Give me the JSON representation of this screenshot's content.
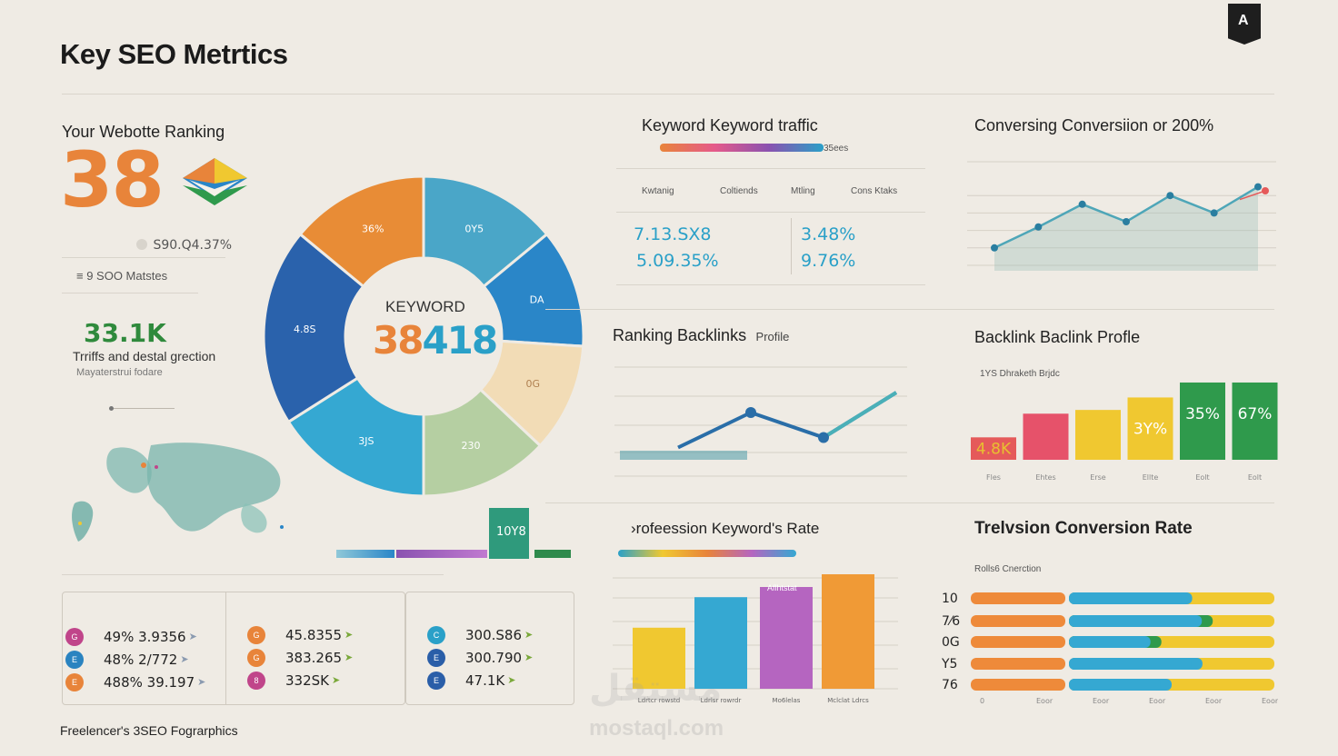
{
  "header": {
    "title": "Key SEO Metrtics",
    "logo_glyph": "A",
    "footer": "Freelencer's 3SEO Fograrphics"
  },
  "ranking": {
    "heading": "Your Webotte Ranking",
    "value": "38",
    "sub_value": "S90.Q4.37%",
    "metric_line": "9 SOO Matstes",
    "traffic_value": "33.1K",
    "traffic_label": "Trriffs and destal grection",
    "traffic_sub": "Mayaterstrui  fodare"
  },
  "donut": {
    "center_label": "KEYWORD",
    "center_value_a": "38",
    "center_value_b": "418",
    "badge": "10Y8"
  },
  "keyword_traffic": {
    "heading": "Keyword Keyword traffic",
    "bar_label": "35ees",
    "columns": [
      "Kwtanig",
      "Coltiends",
      "Mtling",
      "Cons Ktaks"
    ],
    "left_values": [
      "7.13.SX8",
      "5.09.35%"
    ],
    "right_values": [
      "3.48%",
      "9.76%"
    ]
  },
  "conversion": {
    "heading": "Conversing Conversiion or 200%"
  },
  "ranking_backlinks": {
    "heading": "Ranking  Backlinks",
    "heading_sub": "Profile"
  },
  "backlink_profile": {
    "heading": "Backlink Baclink Profle",
    "sub": "1YS Dhraketh Brjdc"
  },
  "keywords_rate": {
    "heading": "›rofeession Keyword's Rate",
    "bar_text": "Aflhtstat",
    "xlabels": [
      "Ldrtcr rowstd",
      "Ldrlsr rowrdr",
      "Mo6lelas",
      "Mclclat Ldrcs"
    ]
  },
  "conversion_rate": {
    "heading": "Trelvsion Conversion Rate",
    "sub": "Rolls6 Cnerction",
    "row_labels": [
      "10",
      "7⁄6",
      "0G",
      "Y5",
      "76"
    ],
    "xlabels": [
      "0",
      "Eoor",
      "Eoor",
      "Eoor",
      "Eoor",
      "Eoor"
    ]
  },
  "bottom_stats": {
    "col1": [
      {
        "icon": "G",
        "text": "49% 3.9356",
        "color": "#c0458a"
      },
      {
        "icon": "E",
        "text": "48% 2/772",
        "color": "#2a83c0"
      },
      {
        "icon": "E",
        "text": "488% 39.197",
        "color": "#e8843a"
      }
    ],
    "col2": [
      {
        "icon": "G",
        "text": "45.8355",
        "color": "#e8843a"
      },
      {
        "icon": "G",
        "text": "383.265",
        "color": "#e8843a"
      },
      {
        "icon": "8",
        "text": "332SK",
        "color": "#c0458a"
      }
    ],
    "col3": [
      {
        "icon": "C",
        "text": "300.S86",
        "color": "#2aa0c8"
      },
      {
        "icon": "E",
        "text": "300.790",
        "color": "#2a5ea8"
      },
      {
        "icon": "E",
        "text": "47.1K",
        "color": "#2a5ea8"
      }
    ]
  },
  "chart_data": [
    {
      "type": "pie",
      "name": "donut",
      "labels": [
        "0Y5",
        "DA",
        "0G",
        "230",
        "3JS",
        "4.8S",
        "36%"
      ],
      "values": [
        14,
        12,
        11,
        13,
        16,
        20,
        14
      ],
      "colors": [
        "#4aa6c8",
        "#2a86c8",
        "#f2dcb6",
        "#b5cfa2",
        "#35a8d2",
        "#2a62ac",
        "#e88c36"
      ]
    },
    {
      "type": "line",
      "name": "conversion",
      "x": [
        1,
        2,
        3,
        4,
        5,
        6,
        7
      ],
      "y": [
        10,
        22,
        35,
        25,
        40,
        30,
        45
      ],
      "ylim": [
        0,
        50
      ]
    },
    {
      "type": "line",
      "name": "ranking-backlinks",
      "x": [
        1,
        2,
        3,
        4
      ],
      "y": [
        5,
        40,
        15,
        60
      ],
      "ylim": [
        0,
        100
      ]
    },
    {
      "type": "bar",
      "name": "backlink-profile",
      "categories": [
        "",
        "",
        "",
        "",
        "",
        ""
      ],
      "values": [
        18,
        37,
        40,
        50,
        62,
        62
      ],
      "labels": [
        "4.8K",
        "",
        "",
        "3Y%",
        "35%",
        "67%"
      ],
      "colors": [
        "#e55a5a",
        "#e6526a",
        "#f0c830",
        "#f0c830",
        "#2f9a4c",
        "#2f9a4c"
      ],
      "xlabels": [
        "Fles",
        "Ehtes",
        "Erse",
        "Ellte",
        "Eolt",
        "Eolt"
      ],
      "ylim": [
        0,
        70
      ]
    },
    {
      "type": "bar",
      "name": "keywords-rate",
      "categories": [
        "",
        "",
        "",
        ""
      ],
      "values": [
        48,
        72,
        80,
        90
      ],
      "colors": [
        "#f0c830",
        "#35a8d2",
        "#b565c0",
        "#f09a36"
      ],
      "ylim": [
        0,
        100
      ]
    },
    {
      "type": "bar",
      "name": "conversion-rate",
      "orientation": "horizontal",
      "categories": [
        "10",
        "7⁄6",
        "0G",
        "Y5",
        "76"
      ],
      "series": [
        {
          "values": [
            60,
            70,
            45,
            65,
            50
          ],
          "color": "#35a8d2"
        },
        {
          "values": [
            20,
            25,
            30,
            20,
            40
          ],
          "color": "#f0c830"
        }
      ],
      "xlim": [
        0,
        100
      ]
    }
  ]
}
